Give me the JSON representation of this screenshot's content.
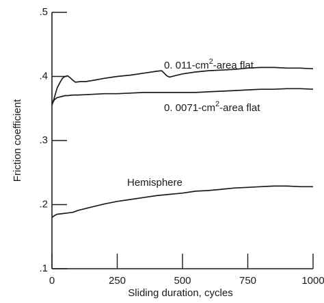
{
  "chart_data": {
    "type": "line",
    "title": "",
    "xlabel": "Sliding duration, cycles",
    "ylabel": "Friction coefficient",
    "xlim": [
      0,
      1000
    ],
    "ylim": [
      0.1,
      0.5
    ],
    "x_ticks": [
      0,
      250,
      500,
      750,
      1000
    ],
    "x_tick_labels": [
      "0",
      "250",
      "500",
      "750",
      "1000"
    ],
    "y_ticks": [
      0.1,
      0.2,
      0.3,
      0.4,
      0.5
    ],
    "y_tick_labels": [
      ".1",
      ".2",
      ".3",
      ".4",
      ".5"
    ],
    "grid": false,
    "legend": "none",
    "series": [
      {
        "label_prefix": "0. 011-cm",
        "label_sup": "2",
        "label_suffix": "-area flat",
        "x": [
          0,
          10,
          20,
          30,
          40,
          50,
          60,
          70,
          80,
          90,
          110,
          130,
          160,
          200,
          250,
          300,
          350,
          400,
          420,
          430,
          440,
          450,
          470,
          500,
          550,
          600,
          650,
          700,
          750,
          800,
          850,
          900,
          950,
          1000
        ],
        "y": [
          0.355,
          0.368,
          0.382,
          0.39,
          0.397,
          0.4,
          0.401,
          0.398,
          0.394,
          0.391,
          0.392,
          0.392,
          0.394,
          0.397,
          0.4,
          0.402,
          0.405,
          0.408,
          0.409,
          0.405,
          0.401,
          0.399,
          0.401,
          0.404,
          0.407,
          0.409,
          0.41,
          0.411,
          0.413,
          0.414,
          0.414,
          0.413,
          0.413,
          0.412
        ]
      },
      {
        "label_prefix": "0. 0071-cm",
        "label_sup": "2",
        "label_suffix": "-area flat",
        "x": [
          0,
          10,
          20,
          30,
          40,
          50,
          60,
          80,
          100,
          150,
          200,
          250,
          300,
          350,
          400,
          450,
          500,
          550,
          600,
          650,
          700,
          750,
          800,
          850,
          900,
          950,
          1000
        ],
        "y": [
          0.357,
          0.364,
          0.367,
          0.368,
          0.369,
          0.37,
          0.37,
          0.371,
          0.371,
          0.372,
          0.373,
          0.373,
          0.374,
          0.375,
          0.375,
          0.375,
          0.375,
          0.375,
          0.376,
          0.377,
          0.378,
          0.379,
          0.38,
          0.38,
          0.381,
          0.381,
          0.38
        ]
      },
      {
        "label_prefix": "Hemisphere",
        "label_sup": "",
        "label_suffix": "",
        "x": [
          0,
          10,
          20,
          40,
          60,
          80,
          100,
          150,
          200,
          250,
          300,
          350,
          400,
          450,
          500,
          550,
          600,
          650,
          700,
          750,
          800,
          850,
          900,
          950,
          1000
        ],
        "y": [
          0.18,
          0.183,
          0.185,
          0.186,
          0.187,
          0.188,
          0.191,
          0.196,
          0.201,
          0.205,
          0.208,
          0.211,
          0.214,
          0.216,
          0.218,
          0.221,
          0.222,
          0.224,
          0.226,
          0.227,
          0.228,
          0.229,
          0.229,
          0.228,
          0.228
        ]
      }
    ]
  }
}
